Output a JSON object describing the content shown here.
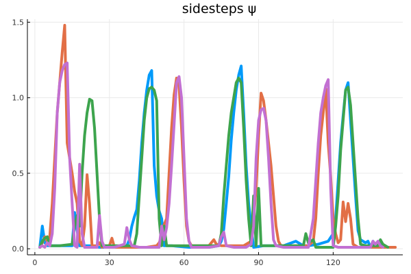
{
  "chart_data": {
    "type": "line",
    "title": "sidesteps ψ",
    "xlabel": "",
    "ylabel": "",
    "xlim": [
      -3,
      148
    ],
    "ylim": [
      -0.04,
      1.52
    ],
    "xticks": [
      0,
      30,
      60,
      90,
      120
    ],
    "xtick_labels": [
      "0",
      "30",
      "60",
      "90",
      "120"
    ],
    "yticks": [
      0.0,
      0.5,
      1.0,
      1.5
    ],
    "ytick_labels": [
      "0.0",
      "0.5",
      "1.0",
      "1.5"
    ],
    "grid": true,
    "legend": false,
    "series": [
      {
        "color": "#009AFA",
        "points": [
          [
            2,
            0.01
          ],
          [
            3,
            0.15
          ],
          [
            4,
            0.04
          ],
          [
            5,
            0.02
          ],
          [
            6,
            0.02
          ],
          [
            10,
            0.02
          ],
          [
            15,
            0.02
          ],
          [
            16,
            0.24
          ],
          [
            17,
            0.12
          ],
          [
            18,
            0.02
          ],
          [
            22,
            0.02
          ],
          [
            26,
            0.01
          ],
          [
            30,
            0.01
          ],
          [
            37,
            0.02
          ],
          [
            38,
            0.06
          ],
          [
            39,
            0.15
          ],
          [
            40,
            0.21
          ],
          [
            41,
            0.26
          ],
          [
            42,
            0.45
          ],
          [
            43,
            0.7
          ],
          [
            44,
            0.9
          ],
          [
            45,
            1.05
          ],
          [
            46,
            1.15
          ],
          [
            47,
            1.18
          ],
          [
            48,
            0.55
          ],
          [
            49,
            0.35
          ],
          [
            50,
            0.25
          ],
          [
            51,
            0.2
          ],
          [
            52,
            0.02
          ],
          [
            55,
            0.02
          ],
          [
            62,
            0.01
          ],
          [
            70,
            0.01
          ],
          [
            74,
            0.02
          ],
          [
            75,
            0.05
          ],
          [
            76,
            0.13
          ],
          [
            77,
            0.3
          ],
          [
            78,
            0.48
          ],
          [
            79,
            0.72
          ],
          [
            80,
            0.9
          ],
          [
            81,
            1.05
          ],
          [
            82,
            1.15
          ],
          [
            83,
            1.21
          ],
          [
            84,
            0.9
          ],
          [
            85,
            0.55
          ],
          [
            86,
            0.3
          ],
          [
            87,
            0.15
          ],
          [
            88,
            0.01
          ],
          [
            92,
            0.02
          ],
          [
            95,
            0.02
          ],
          [
            100,
            0.02
          ],
          [
            105,
            0.05
          ],
          [
            108,
            0.02
          ],
          [
            110,
            0.02
          ],
          [
            114,
            0.03
          ],
          [
            118,
            0.05
          ],
          [
            120,
            0.1
          ],
          [
            121,
            0.2
          ],
          [
            122,
            0.45
          ],
          [
            123,
            0.7
          ],
          [
            124,
            0.88
          ],
          [
            125,
            1.05
          ],
          [
            126,
            1.1
          ],
          [
            127,
            0.85
          ],
          [
            128,
            0.6
          ],
          [
            129,
            0.35
          ],
          [
            130,
            0.12
          ],
          [
            131,
            0.06
          ],
          [
            133,
            0.04
          ],
          [
            134,
            0.05
          ],
          [
            135,
            0.01
          ],
          [
            136,
            0.05
          ],
          [
            137,
            0.01
          ],
          [
            139,
            0.05
          ],
          [
            140,
            0.02
          ]
        ]
      },
      {
        "color": "#E26F46",
        "points": [
          [
            2,
            0.01
          ],
          [
            3,
            0.04
          ],
          [
            4,
            0.08
          ],
          [
            5,
            0.05
          ],
          [
            6,
            0.08
          ],
          [
            7,
            0.3
          ],
          [
            8,
            0.6
          ],
          [
            9,
            0.9
          ],
          [
            10,
            1.1
          ],
          [
            11,
            1.3
          ],
          [
            12,
            1.48
          ],
          [
            13,
            0.7
          ],
          [
            14,
            0.6
          ],
          [
            15,
            0.5
          ],
          [
            16,
            0.38
          ],
          [
            17,
            0.3
          ],
          [
            18,
            0.05
          ],
          [
            19,
            0.02
          ],
          [
            20,
            0.15
          ],
          [
            21,
            0.49
          ],
          [
            22,
            0.3
          ],
          [
            23,
            0.02
          ],
          [
            25,
            0.02
          ],
          [
            26,
            0.04
          ],
          [
            27,
            0.01
          ],
          [
            28,
            0.02
          ],
          [
            30,
            0.02
          ],
          [
            31,
            0.07
          ],
          [
            32,
            0.01
          ],
          [
            35,
            0.01
          ],
          [
            45,
            0.01
          ],
          [
            49,
            0.02
          ],
          [
            50,
            0.04
          ],
          [
            51,
            0.08
          ],
          [
            52,
            0.16
          ],
          [
            53,
            0.2
          ],
          [
            54,
            0.5
          ],
          [
            55,
            0.8
          ],
          [
            56,
            1.02
          ],
          [
            57,
            1.13
          ],
          [
            58,
            1.08
          ],
          [
            59,
            0.8
          ],
          [
            60,
            0.45
          ],
          [
            61,
            0.15
          ],
          [
            62,
            0.05
          ],
          [
            63,
            0.02
          ],
          [
            70,
            0.02
          ],
          [
            72,
            0.06
          ],
          [
            73,
            0.03
          ],
          [
            75,
            0.02
          ],
          [
            84,
            0.02
          ],
          [
            87,
            0.05
          ],
          [
            88,
            0.2
          ],
          [
            89,
            0.4
          ],
          [
            90,
            0.75
          ],
          [
            91,
            1.03
          ],
          [
            92,
            0.98
          ],
          [
            93,
            0.85
          ],
          [
            94,
            0.7
          ],
          [
            95,
            0.55
          ],
          [
            96,
            0.35
          ],
          [
            97,
            0.15
          ],
          [
            98,
            0.05
          ],
          [
            99,
            0.02
          ],
          [
            105,
            0.02
          ],
          [
            110,
            0.02
          ],
          [
            112,
            0.05
          ],
          [
            113,
            0.2
          ],
          [
            114,
            0.5
          ],
          [
            115,
            0.75
          ],
          [
            116,
            0.9
          ],
          [
            117,
            1.06
          ],
          [
            118,
            0.7
          ],
          [
            119,
            0.48
          ],
          [
            120,
            0.2
          ],
          [
            121,
            0.1
          ],
          [
            122,
            0.04
          ],
          [
            123,
            0.06
          ],
          [
            124,
            0.31
          ],
          [
            125,
            0.18
          ],
          [
            126,
            0.3
          ],
          [
            127,
            0.2
          ],
          [
            128,
            0.03
          ],
          [
            130,
            0.01
          ],
          [
            145,
            0.01
          ]
        ]
      },
      {
        "color": "#3DA44D",
        "points": [
          [
            2,
            0.01
          ],
          [
            3,
            0.05
          ],
          [
            4,
            0.07
          ],
          [
            5,
            0.08
          ],
          [
            6,
            0.02
          ],
          [
            10,
            0.02
          ],
          [
            15,
            0.03
          ],
          [
            16,
            0.15
          ],
          [
            17,
            0.22
          ],
          [
            18,
            0.15
          ],
          [
            19,
            0.5
          ],
          [
            20,
            0.75
          ],
          [
            21,
            0.9
          ],
          [
            22,
            0.99
          ],
          [
            23,
            0.98
          ],
          [
            24,
            0.8
          ],
          [
            25,
            0.5
          ],
          [
            26,
            0.2
          ],
          [
            27,
            0.02
          ],
          [
            30,
            0.02
          ],
          [
            36,
            0.02
          ],
          [
            40,
            0.02
          ],
          [
            41,
            0.1
          ],
          [
            42,
            0.35
          ],
          [
            43,
            0.6
          ],
          [
            44,
            0.85
          ],
          [
            45,
            1.0
          ],
          [
            46,
            1.06
          ],
          [
            47,
            1.07
          ],
          [
            48,
            1.05
          ],
          [
            49,
            0.98
          ],
          [
            50,
            0.2
          ],
          [
            51,
            0.02
          ],
          [
            52,
            0.15
          ],
          [
            53,
            0.02
          ],
          [
            55,
            0.02
          ],
          [
            60,
            0.02
          ],
          [
            70,
            0.02
          ],
          [
            74,
            0.02
          ],
          [
            75,
            0.1
          ],
          [
            76,
            0.35
          ],
          [
            77,
            0.55
          ],
          [
            78,
            0.75
          ],
          [
            79,
            0.9
          ],
          [
            80,
            1.0
          ],
          [
            81,
            1.1
          ],
          [
            82,
            1.13
          ],
          [
            83,
            1.1
          ],
          [
            84,
            0.8
          ],
          [
            85,
            0.45
          ],
          [
            86,
            0.2
          ],
          [
            87,
            0.02
          ],
          [
            88,
            0.35
          ],
          [
            89,
            0.02
          ],
          [
            90,
            0.4
          ],
          [
            91,
            0.02
          ],
          [
            95,
            0.02
          ],
          [
            100,
            0.02
          ],
          [
            108,
            0.02
          ],
          [
            109,
            0.1
          ],
          [
            110,
            0.04
          ],
          [
            112,
            0.06
          ],
          [
            113,
            0.01
          ],
          [
            117,
            0.01
          ],
          [
            120,
            0.01
          ],
          [
            121,
            0.15
          ],
          [
            122,
            0.35
          ],
          [
            123,
            0.65
          ],
          [
            124,
            0.85
          ],
          [
            125,
            1.05
          ],
          [
            126,
            1.07
          ],
          [
            127,
            0.95
          ],
          [
            128,
            0.7
          ],
          [
            129,
            0.45
          ],
          [
            130,
            0.2
          ],
          [
            131,
            0.03
          ],
          [
            133,
            0.02
          ],
          [
            138,
            0.02
          ],
          [
            139,
            0.06
          ],
          [
            140,
            0.03
          ],
          [
            142,
            0.01
          ]
        ]
      },
      {
        "color": "#C270D2",
        "points": [
          [
            2,
            0.01
          ],
          [
            3,
            0.02
          ],
          [
            4,
            0.01
          ],
          [
            5,
            0.04
          ],
          [
            6,
            0.02
          ],
          [
            7,
            0.1
          ],
          [
            8,
            0.4
          ],
          [
            9,
            0.9
          ],
          [
            10,
            1.1
          ],
          [
            11,
            1.18
          ],
          [
            12,
            1.22
          ],
          [
            13,
            1.23
          ],
          [
            14,
            0.6
          ],
          [
            15,
            0.3
          ],
          [
            16,
            0.02
          ],
          [
            17,
            0.01
          ],
          [
            18,
            0.56
          ],
          [
            19,
            0.1
          ],
          [
            20,
            0.01
          ],
          [
            25,
            0.01
          ],
          [
            26,
            0.22
          ],
          [
            27,
            0.05
          ],
          [
            28,
            0.01
          ],
          [
            32,
            0.01
          ],
          [
            36,
            0.03
          ],
          [
            37,
            0.14
          ],
          [
            38,
            0.06
          ],
          [
            39,
            0.02
          ],
          [
            42,
            0.01
          ],
          [
            50,
            0.01
          ],
          [
            51,
            0.15
          ],
          [
            52,
            0.06
          ],
          [
            53,
            0.14
          ],
          [
            54,
            0.3
          ],
          [
            55,
            0.55
          ],
          [
            56,
            0.82
          ],
          [
            57,
            1.1
          ],
          [
            58,
            1.14
          ],
          [
            59,
            1.0
          ],
          [
            60,
            0.6
          ],
          [
            61,
            0.2
          ],
          [
            62,
            0.05
          ],
          [
            63,
            0.01
          ],
          [
            70,
            0.01
          ],
          [
            74,
            0.02
          ],
          [
            75,
            0.08
          ],
          [
            76,
            0.11
          ],
          [
            77,
            0.02
          ],
          [
            80,
            0.01
          ],
          [
            85,
            0.01
          ],
          [
            87,
            0.03
          ],
          [
            88,
            0.15
          ],
          [
            89,
            0.6
          ],
          [
            90,
            0.85
          ],
          [
            91,
            0.92
          ],
          [
            92,
            0.93
          ],
          [
            93,
            0.85
          ],
          [
            94,
            0.6
          ],
          [
            95,
            0.3
          ],
          [
            96,
            0.06
          ],
          [
            97,
            0.02
          ],
          [
            100,
            0.01
          ],
          [
            110,
            0.01
          ],
          [
            111,
            0.1
          ],
          [
            112,
            0.2
          ],
          [
            113,
            0.45
          ],
          [
            114,
            0.7
          ],
          [
            115,
            0.9
          ],
          [
            116,
            1.0
          ],
          [
            117,
            1.08
          ],
          [
            118,
            1.12
          ],
          [
            119,
            0.4
          ],
          [
            120,
            0.02
          ],
          [
            122,
            0.01
          ],
          [
            128,
            0.01
          ],
          [
            135,
            0.01
          ],
          [
            136,
            0.05
          ],
          [
            137,
            0.03
          ],
          [
            138,
            0.05
          ],
          [
            139,
            0.02
          ],
          [
            140,
            0.01
          ]
        ]
      }
    ]
  }
}
